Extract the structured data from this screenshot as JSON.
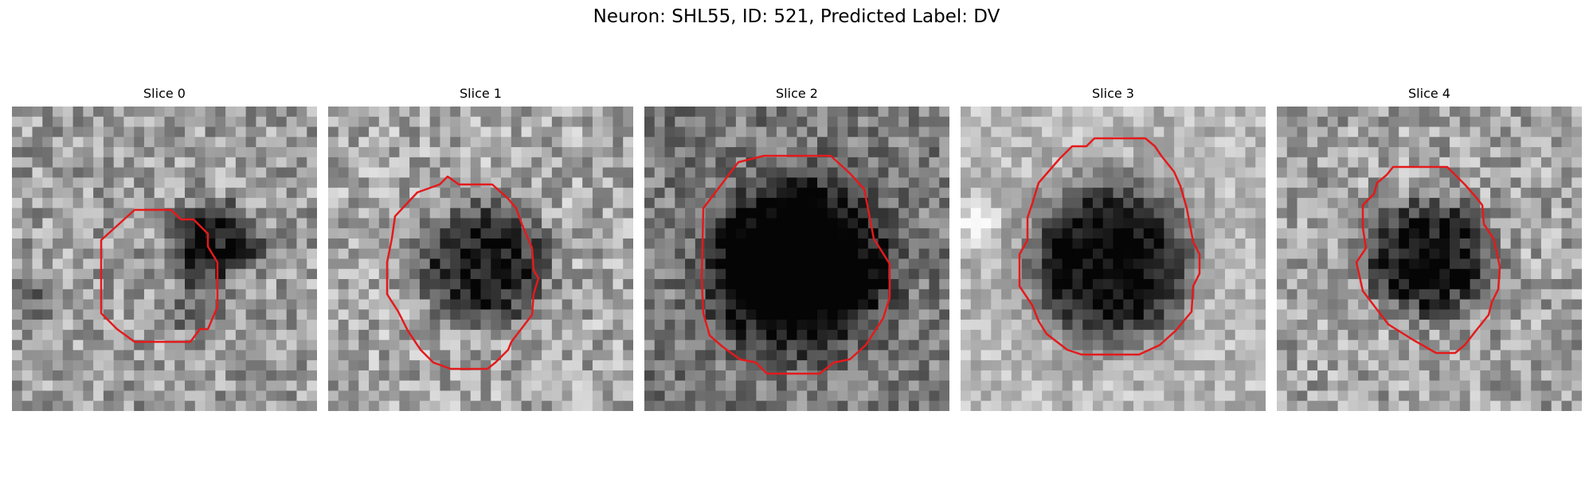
{
  "figure": {
    "title": "Neuron: SHL55, ID: 521, Predicted Label: DV"
  },
  "panels": [
    {
      "title": "Slice 0",
      "image": "grayscale-microscopy-crop-dark-blob-upper-right",
      "outline_color": "#e41a1c"
    },
    {
      "title": "Slice 1",
      "image": "grayscale-microscopy-crop-dark-cell-center",
      "outline_color": "#e41a1c"
    },
    {
      "title": "Slice 2",
      "image": "grayscale-microscopy-crop-large-dark-cell",
      "outline_color": "#e41a1c"
    },
    {
      "title": "Slice 3",
      "image": "grayscale-microscopy-crop-dark-cell-bright-border",
      "outline_color": "#e41a1c"
    },
    {
      "title": "Slice 4",
      "image": "grayscale-microscopy-crop-small-dark-cell",
      "outline_color": "#e41a1c"
    }
  ]
}
